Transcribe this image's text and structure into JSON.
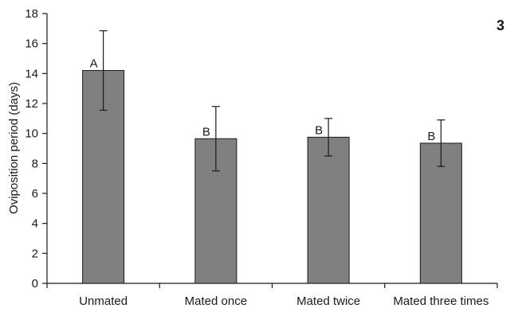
{
  "chart_data": {
    "type": "bar",
    "panel_label": "3",
    "ylabel": "Oviposition period (days)",
    "xlabel": "",
    "ylim": [
      0,
      18
    ],
    "yticks": [
      0,
      2,
      4,
      6,
      8,
      10,
      12,
      14,
      16,
      18
    ],
    "categories": [
      "Unmated",
      "Mated once",
      "Mated twice",
      "Mated three times"
    ],
    "values": [
      14.2,
      9.65,
      9.75,
      9.35
    ],
    "error": [
      2.65,
      2.15,
      1.25,
      1.55
    ],
    "significance": [
      "A",
      "B",
      "B",
      "B"
    ],
    "bar_color": "#808080",
    "grid": false,
    "legend": "none"
  }
}
